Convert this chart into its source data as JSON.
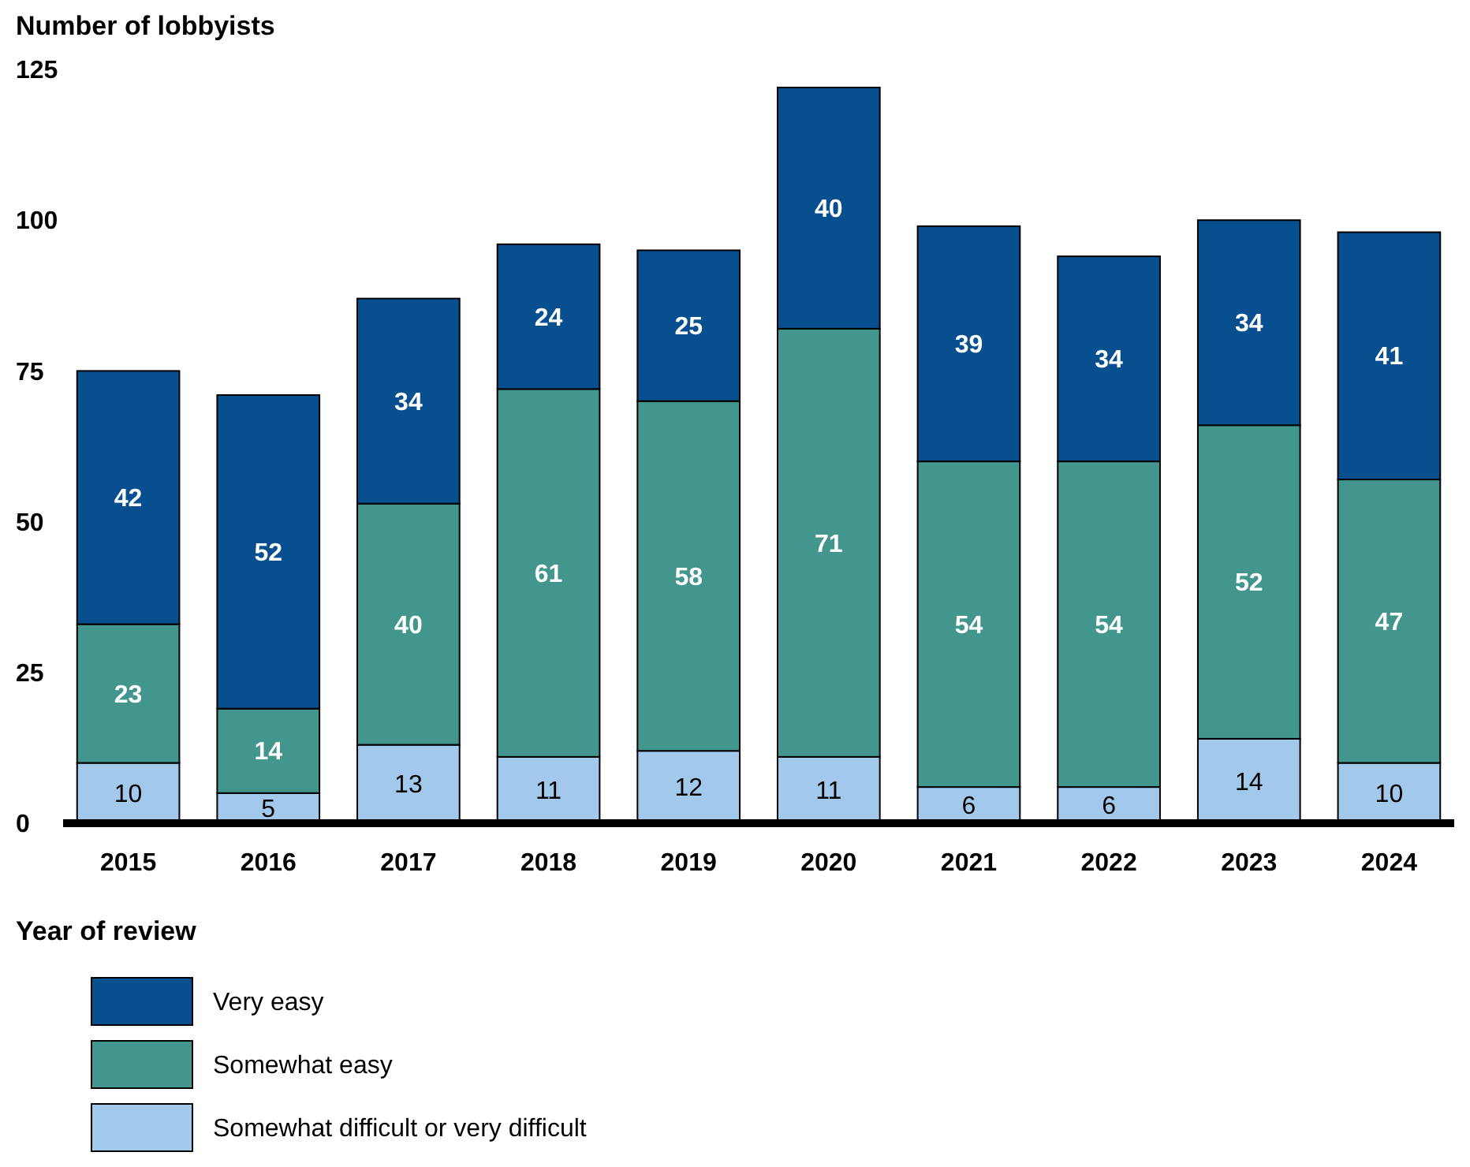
{
  "chart_data": {
    "type": "bar",
    "stacked": true,
    "ylabel": "Number of lobbyists",
    "xlabel": "Year of review",
    "categories": [
      "2015",
      "2016",
      "2017",
      "2018",
      "2019",
      "2020",
      "2021",
      "2022",
      "2023",
      "2024"
    ],
    "series": [
      {
        "name": "Somewhat difficult or very difficult",
        "color": "#a2c8ec",
        "values": [
          10,
          5,
          13,
          11,
          12,
          11,
          6,
          6,
          14,
          10
        ]
      },
      {
        "name": "Somewhat easy",
        "color": "#42968e",
        "values": [
          23,
          14,
          40,
          61,
          58,
          71,
          54,
          54,
          52,
          47
        ]
      },
      {
        "name": "Very easy",
        "color": "#074f8f",
        "values": [
          42,
          52,
          34,
          24,
          25,
          40,
          39,
          34,
          34,
          41
        ]
      }
    ],
    "ylim": [
      0,
      125
    ],
    "yticks": [
      0,
      25,
      50,
      75,
      100,
      125
    ],
    "grid": false,
    "legend": "bottom",
    "data_labels": true
  }
}
